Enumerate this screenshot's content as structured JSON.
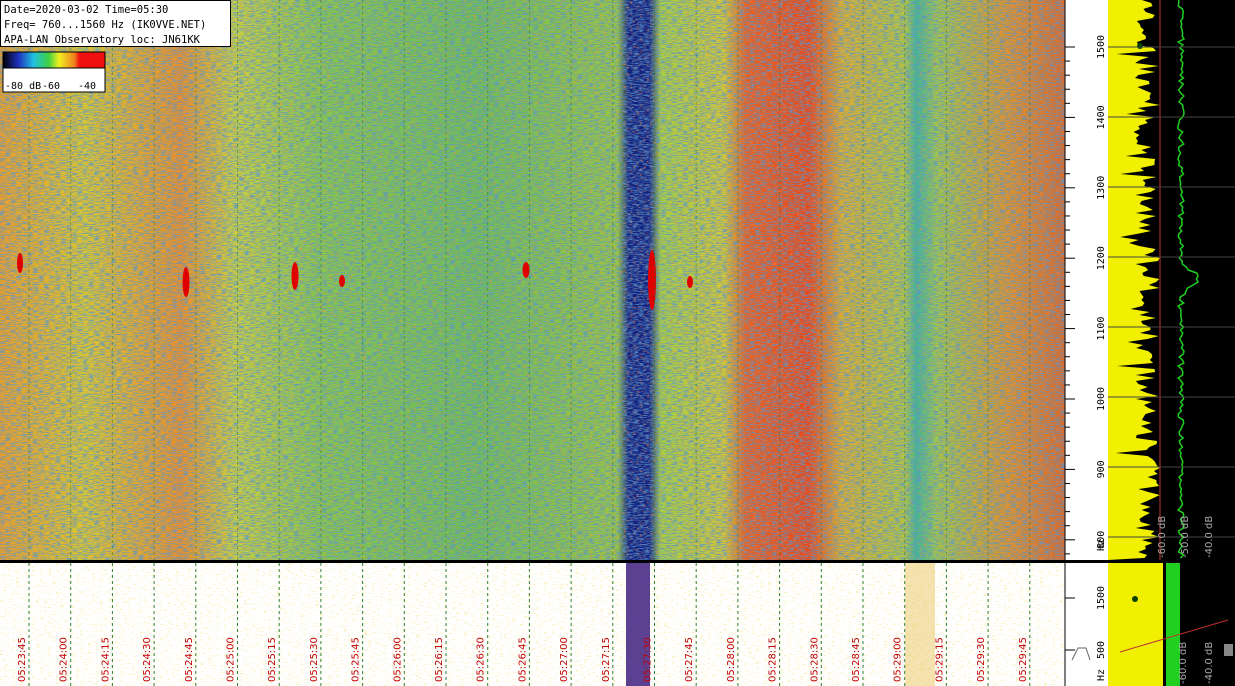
{
  "header": {
    "lines": [
      "Date=2020-03-02 Time=05:30",
      "Freq= 760...1560 Hz (IK0VVE.NET)",
      "APA-LAN Observatory loc: JN61KK"
    ]
  },
  "colorbar": {
    "labels": [
      "-80 dB",
      "-60",
      "-40"
    ]
  },
  "freq_axis": {
    "ticks": [
      "1500",
      "1400",
      "1300",
      "1200",
      "1100",
      "1000",
      "900",
      "800"
    ],
    "unit": "Hz"
  },
  "lower_freq_axis": {
    "ticks": [
      "1500",
      "500"
    ],
    "unit": "Hz"
  },
  "time_axis": {
    "labels": [
      "05:23:45",
      "05:24:00",
      "05:24:15",
      "05:24:30",
      "05:24:45",
      "05:25:00",
      "05:25:15",
      "05:25:30",
      "05:25:45",
      "05:26:00",
      "05:26:15",
      "05:26:30",
      "05:26:45",
      "05:27:00",
      "05:27:15",
      "05:27:30",
      "05:27:45",
      "05:28:00",
      "05:28:15",
      "05:28:30",
      "05:28:45",
      "05:29:00",
      "05:29:15",
      "05:29:30",
      "05:29:45"
    ]
  },
  "spectrum_labels": [
    "-60.0 dB",
    "-50.0 dB",
    "-40.0 dB"
  ],
  "lower_spectrum_labels": [
    "-60.0 dB",
    "-40.0 dB"
  ]
}
